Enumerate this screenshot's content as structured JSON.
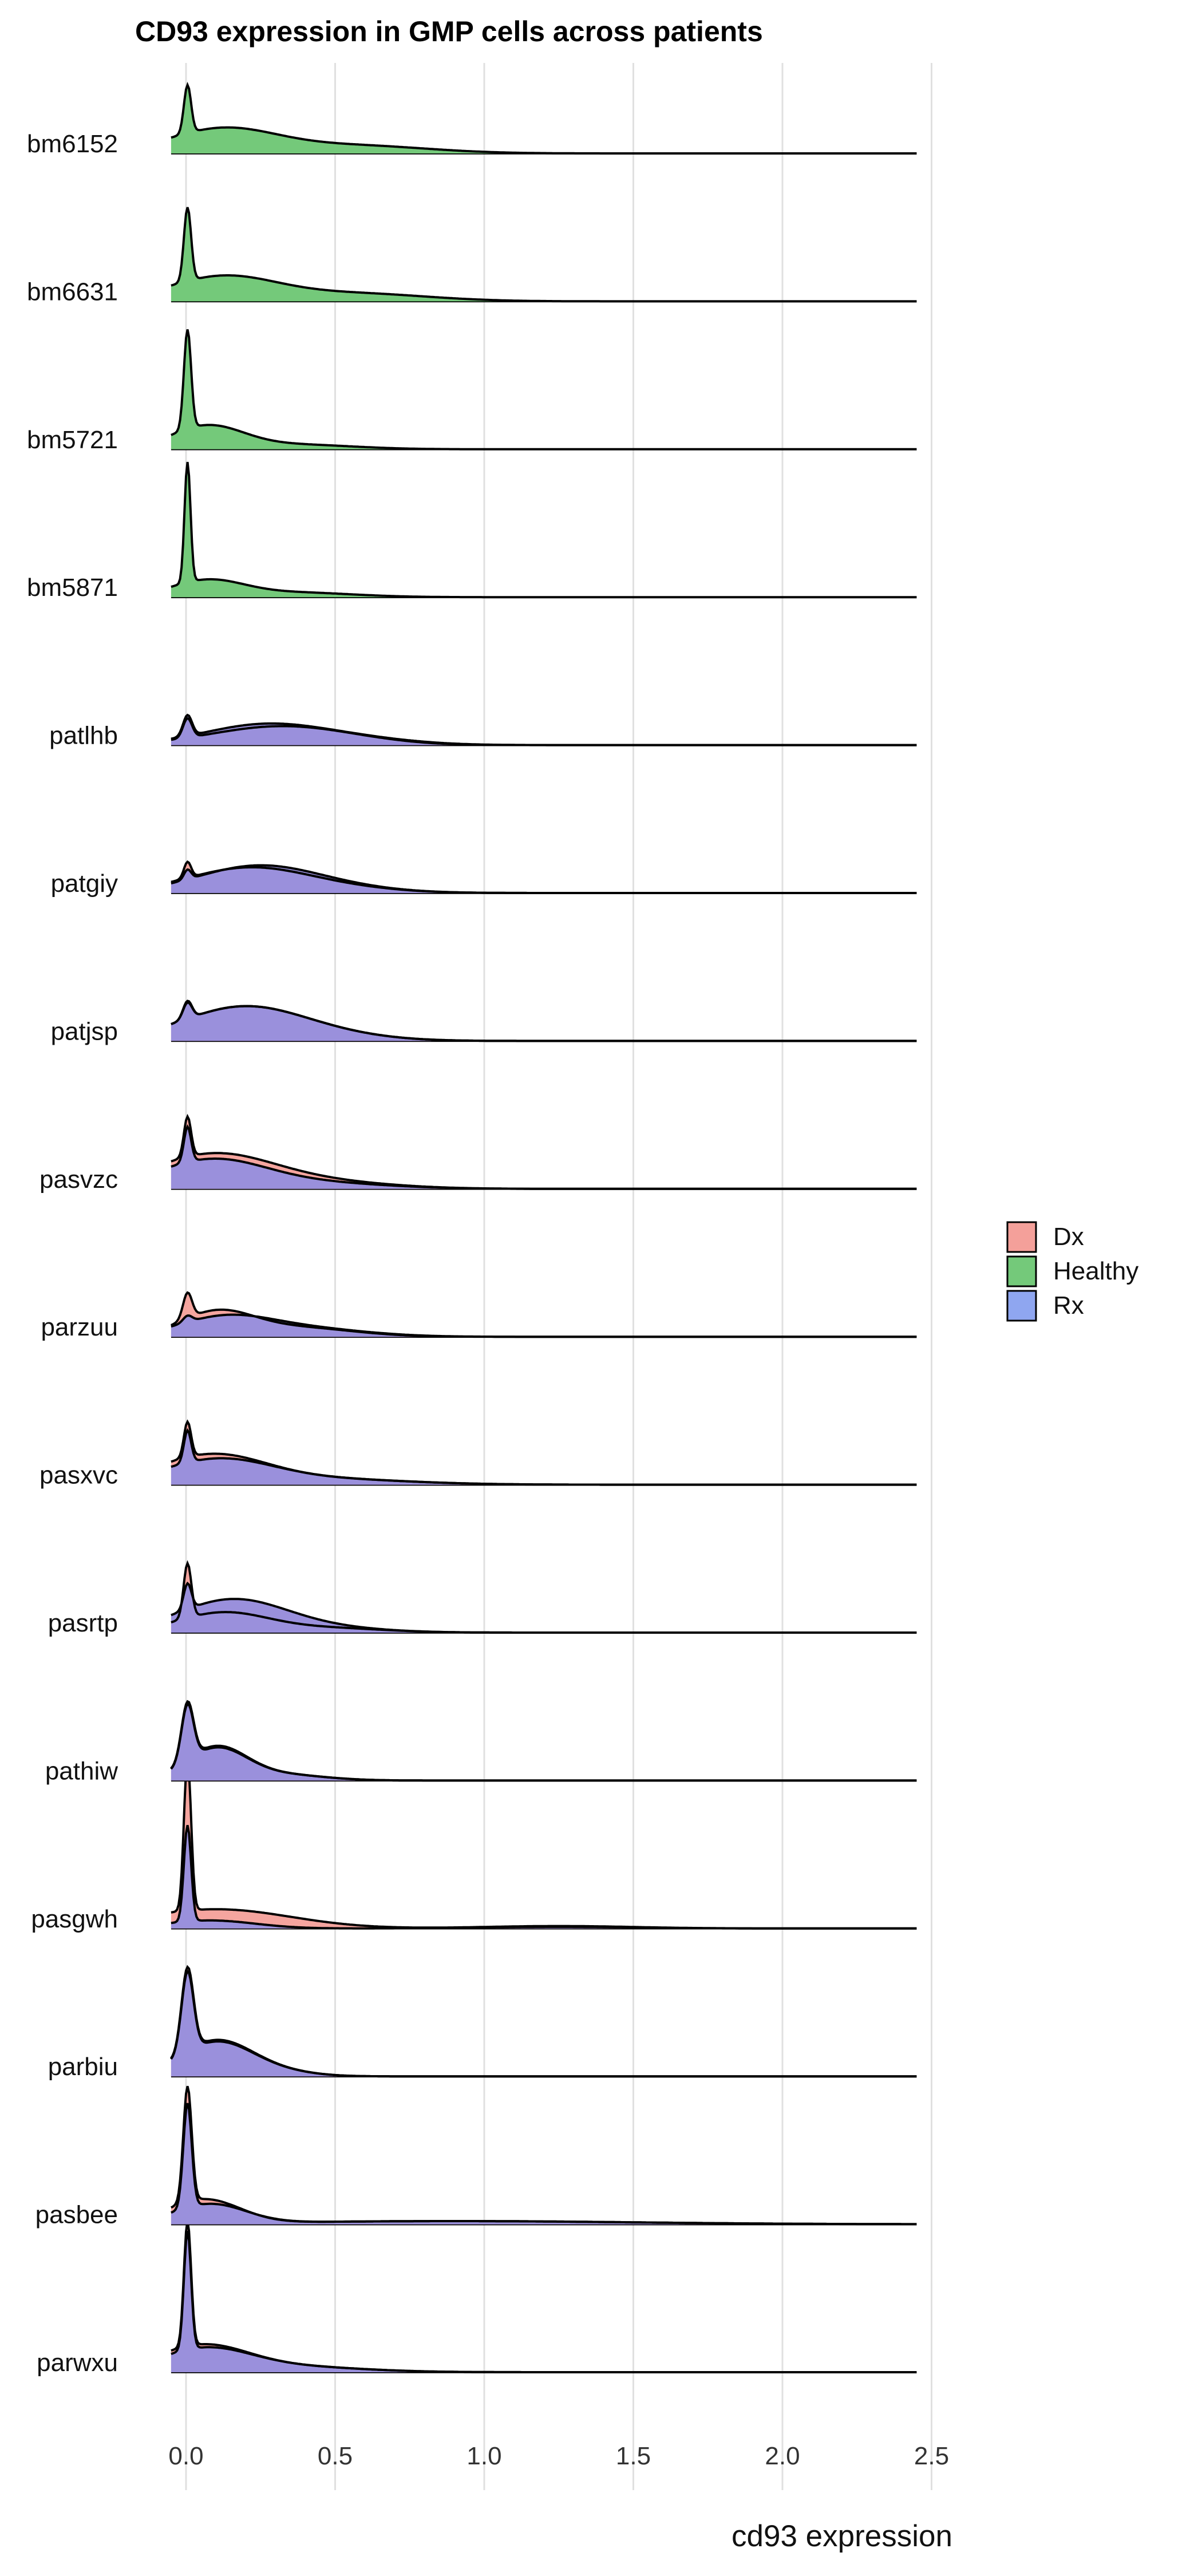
{
  "chart_data": {
    "type": "ridgeline",
    "title": "CD93 expression in GMP cells across patients",
    "xlabel": "cd93 expression",
    "ylabel": "",
    "xlim": [
      -0.05,
      2.45
    ],
    "x_ticks": [
      0.0,
      0.5,
      1.0,
      1.5,
      2.0,
      2.5
    ],
    "x_tick_labels": [
      "0.0",
      "0.5",
      "1.0",
      "1.5",
      "2.0",
      "2.5"
    ],
    "grid": true,
    "legend": {
      "placement": "right",
      "entries": [
        {
          "name": "Dx",
          "color": "#F4A09A"
        },
        {
          "name": "Healthy",
          "color": "#74C97A"
        },
        {
          "name": "Rx",
          "color": "#8FA6F0"
        }
      ]
    },
    "overlap_color": "#9A90DC",
    "rows": [
      {
        "label": "bm6152",
        "groups": {
          "Healthy": {
            "peak": 0.3,
            "peak_w": 0.012,
            "tail": 0.15,
            "tail_c": 0.12,
            "tail_w": 0.18,
            "ext": 0.05,
            "ext_c": 0.55,
            "ext_w": 0.25
          }
        }
      },
      {
        "label": "bm6631",
        "groups": {
          "Healthy": {
            "peak": 0.46,
            "peak_w": 0.012,
            "tail": 0.15,
            "tail_c": 0.12,
            "tail_w": 0.18,
            "ext": 0.05,
            "ext_c": 0.55,
            "ext_w": 0.25
          }
        }
      },
      {
        "label": "bm5721",
        "groups": {
          "Healthy": {
            "peak": 0.62,
            "peak_w": 0.012,
            "tail": 0.14,
            "tail_c": 0.07,
            "tail_w": 0.12,
            "ext": 0.03,
            "ext_c": 0.35,
            "ext_w": 0.2
          }
        }
      },
      {
        "label": "bm5871",
        "groups": {
          "Healthy": {
            "peak": 0.75,
            "peak_w": 0.01,
            "tail": 0.1,
            "tail_c": 0.07,
            "tail_w": 0.12,
            "ext": 0.03,
            "ext_c": 0.35,
            "ext_w": 0.2
          }
        }
      },
      {
        "label": "patlhb",
        "groups": {
          "Dx": {
            "peak": 0.12,
            "peak_w": 0.015,
            "tail": 0.1,
            "tail_c": 0.28,
            "tail_w": 0.22,
            "ext": 0.03,
            "ext_c": 0.5,
            "ext_w": 0.2
          },
          "Rx": {
            "peak": 0.13,
            "peak_w": 0.015,
            "tail": 0.12,
            "tail_c": 0.25,
            "tail_w": 0.2,
            "ext": 0.04,
            "ext_c": 0.55,
            "ext_w": 0.2
          }
        }
      },
      {
        "label": "patgiy",
        "groups": {
          "Dx": {
            "peak": 0.1,
            "peak_w": 0.012,
            "tail": 0.15,
            "tail_c": 0.2,
            "tail_w": 0.2,
            "ext": 0.03,
            "ext_c": 0.5,
            "ext_w": 0.2
          },
          "Rx": {
            "peak": 0.06,
            "peak_w": 0.012,
            "tail": 0.16,
            "tail_c": 0.23,
            "tail_w": 0.2,
            "ext": 0.03,
            "ext_c": 0.5,
            "ext_w": 0.2
          }
        }
      },
      {
        "label": "patjsp",
        "groups": {
          "Dx": {
            "peak": 0.1,
            "peak_w": 0.015,
            "tail": 0.2,
            "tail_c": 0.18,
            "tail_w": 0.2,
            "ext": 0.04,
            "ext_c": 0.45,
            "ext_w": 0.2
          },
          "Rx": {
            "peak": 0.11,
            "peak_w": 0.015,
            "tail": 0.2,
            "tail_c": 0.18,
            "tail_w": 0.2,
            "ext": 0.04,
            "ext_c": 0.45,
            "ext_w": 0.2
          }
        }
      },
      {
        "label": "pasvzc",
        "groups": {
          "Dx": {
            "peak": 0.25,
            "peak_w": 0.012,
            "tail": 0.2,
            "tail_c": 0.08,
            "tail_w": 0.2,
            "ext": 0.05,
            "ext_c": 0.4,
            "ext_w": 0.25
          },
          "Rx": {
            "peak": 0.22,
            "peak_w": 0.012,
            "tail": 0.17,
            "tail_c": 0.08,
            "tail_w": 0.18,
            "ext": 0.04,
            "ext_c": 0.4,
            "ext_w": 0.25
          }
        }
      },
      {
        "label": "parzuu",
        "groups": {
          "Dx": {
            "peak": 0.16,
            "peak_w": 0.015,
            "tail": 0.14,
            "tail_c": 0.1,
            "tail_w": 0.12,
            "ext": 0.06,
            "ext_c": 0.35,
            "ext_w": 0.2
          },
          "Rx": {
            "peak": 0.04,
            "peak_w": 0.015,
            "tail": 0.1,
            "tail_c": 0.12,
            "tail_w": 0.15,
            "ext": 0.06,
            "ext_c": 0.35,
            "ext_w": 0.22
          }
        }
      },
      {
        "label": "pasxvc",
        "groups": {
          "Dx": {
            "peak": 0.22,
            "peak_w": 0.012,
            "tail": 0.17,
            "tail_c": 0.08,
            "tail_w": 0.18,
            "ext": 0.04,
            "ext_c": 0.4,
            "ext_w": 0.3
          },
          "Rx": {
            "peak": 0.2,
            "peak_w": 0.012,
            "tail": 0.14,
            "tail_c": 0.1,
            "tail_w": 0.18,
            "ext": 0.04,
            "ext_c": 0.4,
            "ext_w": 0.3
          }
        }
      },
      {
        "label": "pasrtp",
        "groups": {
          "Dx": {
            "peak": 0.34,
            "peak_w": 0.013,
            "tail": 0.12,
            "tail_c": 0.12,
            "tail_w": 0.15,
            "ext": 0.03,
            "ext_c": 0.45,
            "ext_w": 0.2
          },
          "Rx": {
            "peak": 0.16,
            "peak_w": 0.013,
            "tail": 0.2,
            "tail_c": 0.15,
            "tail_w": 0.18,
            "ext": 0.03,
            "ext_c": 0.45,
            "ext_w": 0.2
          }
        }
      },
      {
        "label": "pathiw",
        "groups": {
          "Dx": {
            "peak": 0.36,
            "peak_w": 0.02,
            "tail": 0.2,
            "tail_c": 0.1,
            "tail_w": 0.1,
            "ext": 0.04,
            "ext_c": 0.3,
            "ext_w": 0.15
          },
          "Rx": {
            "peak": 0.35,
            "peak_w": 0.02,
            "tail": 0.19,
            "tail_c": 0.1,
            "tail_w": 0.1,
            "ext": 0.04,
            "ext_c": 0.3,
            "ext_w": 0.15
          }
        }
      },
      {
        "label": "pasgwh",
        "groups": {
          "Dx": {
            "peak": 0.95,
            "peak_w": 0.012,
            "tail": 0.12,
            "tail_c": 0.1,
            "tail_w": 0.25,
            "ext": 0.015,
            "ext_c": 1.25,
            "ext_w": 0.25
          },
          "Rx": {
            "peak": 0.6,
            "peak_w": 0.012,
            "tail": 0.05,
            "tail_c": 0.08,
            "tail_w": 0.15,
            "ext": 0.01,
            "ext_c": 1.25,
            "ext_w": 0.25
          }
        }
      },
      {
        "label": "parbiu",
        "groups": {
          "Dx": {
            "peak": 0.52,
            "peak_w": 0.02,
            "tail": 0.22,
            "tail_c": 0.1,
            "tail_w": 0.12,
            "ext": 0.03,
            "ext_c": 0.3,
            "ext_w": 0.12
          },
          "Rx": {
            "peak": 0.5,
            "peak_w": 0.02,
            "tail": 0.21,
            "tail_c": 0.1,
            "tail_w": 0.12,
            "ext": 0.03,
            "ext_c": 0.3,
            "ext_w": 0.12
          }
        }
      },
      {
        "label": "pasbee",
        "groups": {
          "Dx": {
            "peak": 0.72,
            "peak_w": 0.014,
            "tail": 0.15,
            "tail_c": 0.06,
            "tail_w": 0.12,
            "ext": 0.02,
            "ext_c": 0.9,
            "ext_w": 0.6
          },
          "Rx": {
            "peak": 0.65,
            "peak_w": 0.014,
            "tail": 0.12,
            "tail_c": 0.08,
            "tail_w": 0.12,
            "ext": 0.02,
            "ext_c": 0.9,
            "ext_w": 0.6
          }
        }
      },
      {
        "label": "parwxu",
        "groups": {
          "Dx": {
            "peak": 0.78,
            "peak_w": 0.012,
            "tail": 0.15,
            "tail_c": 0.05,
            "tail_w": 0.15,
            "ext": 0.04,
            "ext_c": 0.3,
            "ext_w": 0.25
          },
          "Rx": {
            "peak": 0.74,
            "peak_w": 0.012,
            "tail": 0.13,
            "tail_c": 0.06,
            "tail_w": 0.15,
            "ext": 0.04,
            "ext_c": 0.3,
            "ext_w": 0.25
          }
        }
      }
    ]
  }
}
